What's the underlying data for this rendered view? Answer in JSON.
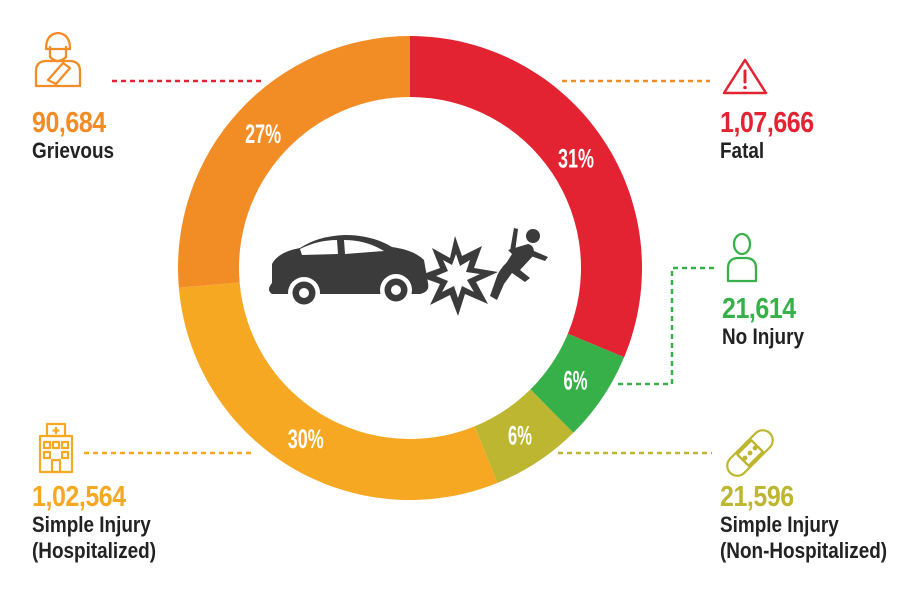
{
  "chart_data": {
    "type": "pie",
    "variant": "donut",
    "segments": [
      {
        "name": "Fatal",
        "value": 107666,
        "value_label": "1,07,666",
        "percent": 31,
        "percent_label": "31%",
        "color": "#e32232",
        "icon": "warning-triangle-icon"
      },
      {
        "name": "No Injury",
        "value": 21614,
        "value_label": "21,614",
        "percent": 6,
        "percent_label": "6%",
        "color": "#38b04a",
        "icon": "person-icon"
      },
      {
        "name": "Simple Injury (Non-Hospitalized)",
        "name_lines": [
          "Simple Injury",
          "(Non-Hospitalized)"
        ],
        "value": 21596,
        "value_label": "21,596",
        "percent": 6,
        "percent_label": "6%",
        "color": "#bdb630",
        "icon": "bandage-icon"
      },
      {
        "name": "Simple Injury (Hospitalized)",
        "name_lines": [
          "Simple Injury",
          "(Hospitalized)"
        ],
        "value": 102564,
        "value_label": "1,02,564",
        "percent": 30,
        "percent_label": "30%",
        "color": "#f7a823",
        "icon": "hospital-icon"
      },
      {
        "name": "Grievous",
        "value": 90684,
        "value_label": "90,684",
        "percent": 27,
        "percent_label": "27%",
        "color": "#f28c25",
        "icon": "injured-person-icon"
      }
    ],
    "center_icon": "car-crash-icon"
  }
}
